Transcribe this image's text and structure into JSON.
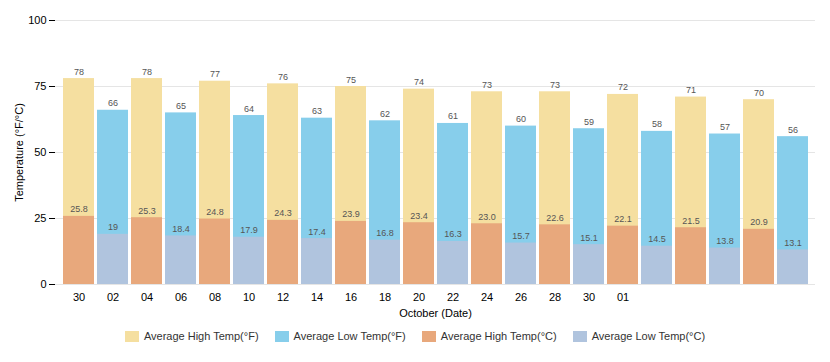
{
  "chart_data": {
    "type": "bar",
    "xlabel": "October (Date)",
    "ylabel": "Temperature (°F/°C)",
    "categories": [
      "30",
      "02",
      "04",
      "06",
      "08",
      "10",
      "12",
      "14",
      "16",
      "18",
      "20",
      "22",
      "24",
      "26",
      "28",
      "30",
      "01",
      null,
      null,
      null,
      null,
      null
    ],
    "series": [
      {
        "name": "Average High Temp(°F)",
        "color": "#F5DFA0",
        "values": [
          78,
          null,
          78,
          null,
          77,
          null,
          76,
          null,
          75,
          null,
          74,
          null,
          73,
          null,
          73,
          null,
          72,
          null,
          71,
          null,
          70,
          null
        ]
      },
      {
        "name": "Average Low Temp(°F)",
        "color": "#87CEEB",
        "values": [
          null,
          66,
          null,
          65,
          null,
          64,
          null,
          63,
          null,
          62,
          null,
          61,
          null,
          60,
          null,
          59,
          null,
          58,
          null,
          57,
          null,
          56
        ]
      },
      {
        "name": "Average High Temp(°C)",
        "color": "#E8A87C",
        "values": [
          25.8,
          null,
          25.3,
          null,
          24.8,
          null,
          24.3,
          null,
          23.9,
          null,
          23.4,
          null,
          23.0,
          null,
          22.6,
          null,
          22.1,
          null,
          21.5,
          null,
          20.9,
          null
        ],
        "value_labels": [
          "25.8",
          null,
          "25.3",
          null,
          "24.8",
          null,
          "24.3",
          null,
          "23.9",
          null,
          "23.4",
          null,
          "23.0",
          null,
          "22.6",
          null,
          "22.1",
          null,
          "21.5",
          null,
          "20.9",
          null
        ]
      },
      {
        "name": "Average Low Temp(°C)",
        "color": "#B0C4DE",
        "values": [
          null,
          19,
          null,
          18.4,
          null,
          17.9,
          null,
          17.4,
          null,
          16.8,
          null,
          16.3,
          null,
          15.7,
          null,
          15.1,
          null,
          14.5,
          null,
          13.8,
          null,
          13.1
        ]
      }
    ],
    "ylim": [
      0,
      100
    ],
    "yticks": [
      0,
      25,
      50,
      75,
      100
    ],
    "grid": true,
    "data_labels": true,
    "legend": "bottom"
  }
}
